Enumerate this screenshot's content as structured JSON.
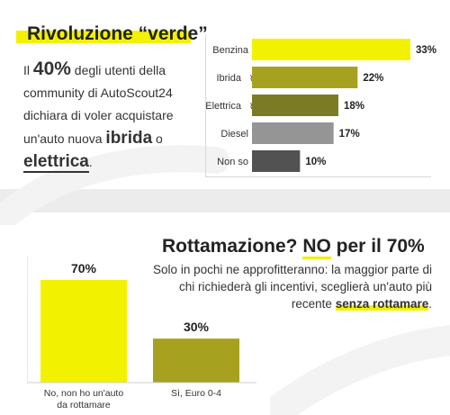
{
  "intro": {
    "title": "Rivoluzione “verde”",
    "t1": "Il ",
    "pct": "40%",
    "t2": " degli utenti della community di AutoScout24 dichiara di voler acquistare un'auto nuova ",
    "hl1": "ibrida",
    "t3": " o ",
    "hl2": "elettrica",
    "t4": "."
  },
  "rottamazione": {
    "title_a": "Rottamazione? ",
    "title_no": "NO",
    "title_b": " per il 70%",
    "sub_a": "Solo in pochi ne approfitteranno: la maggior parte di chi richiederà gli incentivi, sceglierà un'auto più recente ",
    "sub_em": "senza rottamare",
    "sub_b": "."
  },
  "colors": {
    "yellow": "#f2f200",
    "olive": "#a6a11f",
    "olive_dark": "#7c7b25",
    "gray": "#959595",
    "gray_dark": "#525252"
  },
  "chart_data": [
    {
      "type": "bar",
      "orientation": "horizontal",
      "categories": [
        "Benzina",
        "Ibrida",
        "Elettrica",
        "Diesel",
        "Non so"
      ],
      "values": [
        33,
        22,
        18,
        17,
        10
      ],
      "value_labels": [
        "33%",
        "22%",
        "18%",
        "17%",
        "10%"
      ],
      "icons": [
        "",
        "plug-icon",
        "plug-icon",
        "",
        ""
      ],
      "colors": [
        "#f2f200",
        "#a6a11f",
        "#7c7b25",
        "#959595",
        "#525252"
      ],
      "xlim": [
        0,
        33
      ]
    },
    {
      "type": "bar",
      "orientation": "vertical",
      "categories": [
        "No, non ho un'auto da rottamare",
        "Sì, Euro 0-4"
      ],
      "category_lines": [
        [
          "No, non ho un'auto",
          "da rottamare"
        ],
        [
          "Sì, Euro 0-4"
        ]
      ],
      "values": [
        70,
        30
      ],
      "value_labels": [
        "70%",
        "30%"
      ],
      "colors": [
        "#f2f200",
        "#a6a11f"
      ],
      "ylim": [
        0,
        70
      ]
    }
  ]
}
